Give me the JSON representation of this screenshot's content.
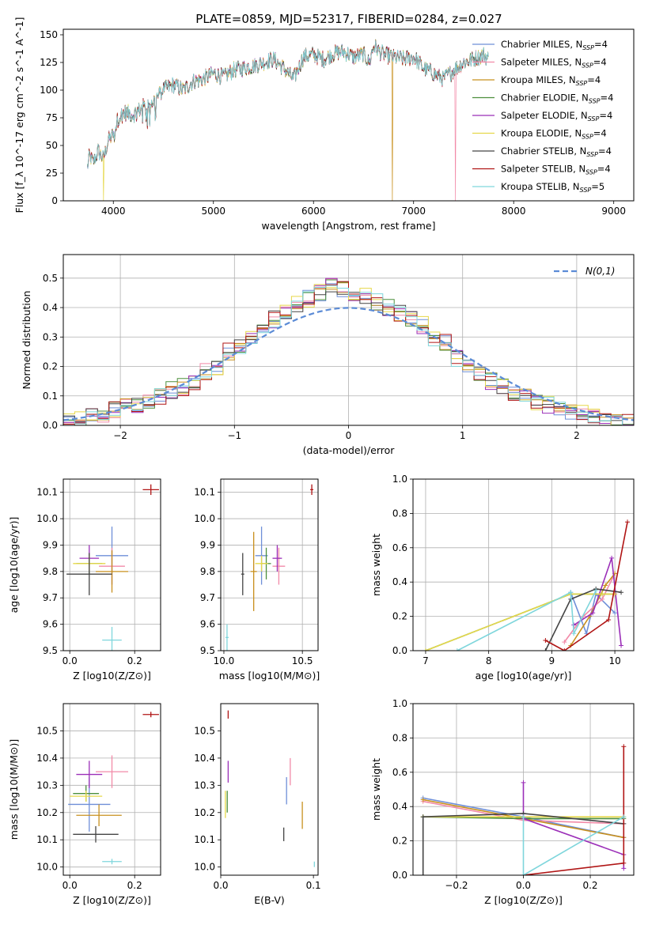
{
  "title": "PLATE=0859, MJD=52317, FIBERID=0284, z=0.027",
  "series_colors": [
    "#6e8fd8",
    "#f28aa8",
    "#c8901e",
    "#4c8f3c",
    "#9b2fb8",
    "#e6d84a",
    "#444444",
    "#b01515",
    "#7fd6dc"
  ],
  "chart_data": [
    {
      "id": "spectrum",
      "type": "line",
      "title": "PLATE=0859, MJD=52317, FIBERID=0284, z=0.027",
      "xlabel": "wavelength [Angstrom, rest frame]",
      "ylabel": "Flux [f_λ 10^-17 erg cm^-2 s^-1 A^-1]",
      "xlim": [
        3500,
        9200
      ],
      "ylim": [
        0,
        155
      ],
      "xticks": [
        4000,
        5000,
        6000,
        7000,
        8000,
        9000
      ],
      "yticks": [
        0,
        25,
        50,
        75,
        100,
        125,
        150
      ],
      "grid": false,
      "legend_position": "top-right",
      "spectrum_envelope": {
        "x": [
          3740,
          3760,
          3800,
          3850,
          3900,
          3950,
          4000,
          4050,
          4100,
          4200,
          4300,
          4400,
          4500,
          4600,
          4700,
          4800,
          4900,
          5000,
          5100,
          5200,
          5300,
          5400,
          5500,
          5600,
          5700,
          5800,
          5900,
          6000,
          6100,
          6200,
          6300,
          6400,
          6500,
          6560,
          6600,
          6700,
          6800,
          6900,
          7000,
          7100,
          7200,
          7300,
          7400,
          7500,
          7600,
          7700,
          7750
        ],
        "y": [
          30,
          40,
          35,
          45,
          38,
          55,
          60,
          75,
          80,
          78,
          85,
          90,
          100,
          105,
          100,
          108,
          110,
          115,
          112,
          118,
          120,
          122,
          125,
          128,
          120,
          110,
          130,
          132,
          128,
          133,
          135,
          130,
          132,
          125,
          140,
          132,
          130,
          128,
          130,
          120,
          115,
          110,
          118,
          125,
          128,
          132,
          128
        ]
      },
      "series": [
        {
          "name": "Chabrier MILES, N_SSP=4"
        },
        {
          "name": "Salpeter MILES, N_SSP=4",
          "drop_to_zero_at": 7420
        },
        {
          "name": "Kroupa MILES, N_SSP=4",
          "drop_to_zero_at": 6790
        },
        {
          "name": "Chabrier ELODIE, N_SSP=4"
        },
        {
          "name": "Salpeter ELODIE, N_SSP=4"
        },
        {
          "name": "Kroupa ELODIE, N_SSP=4",
          "drop_to_zero_at": 3900
        },
        {
          "name": "Chabrier STELIB, N_SSP=4"
        },
        {
          "name": "Salpeter STELIB, N_SSP=4"
        },
        {
          "name": "Kroupa STELIB, N_SSP=5"
        }
      ]
    },
    {
      "id": "residuals",
      "type": "step",
      "xlabel": "(data-model)/error",
      "ylabel": "Normed distribution",
      "xlim": [
        -2.5,
        2.5
      ],
      "ylim": [
        0,
        0.58
      ],
      "xticks": [
        -2,
        -1,
        0,
        1,
        2
      ],
      "yticks": [
        0.0,
        0.1,
        0.2,
        0.3,
        0.4,
        0.5
      ],
      "grid": true,
      "legend_position": "top-right",
      "reference_curve": {
        "name": "N(0,1)",
        "mean": 0,
        "sigma": 1
      },
      "bin_centers": [
        -2.45,
        -2.35,
        -2.25,
        -2.15,
        -2.05,
        -1.95,
        -1.85,
        -1.75,
        -1.65,
        -1.55,
        -1.45,
        -1.35,
        -1.25,
        -1.15,
        -1.05,
        -0.95,
        -0.85,
        -0.75,
        -0.65,
        -0.55,
        -0.45,
        -0.35,
        -0.25,
        -0.15,
        -0.05,
        0.05,
        0.15,
        0.25,
        0.35,
        0.45,
        0.55,
        0.65,
        0.75,
        0.85,
        0.95,
        1.05,
        1.15,
        1.25,
        1.35,
        1.45,
        1.55,
        1.65,
        1.75,
        1.85,
        1.95,
        2.05,
        2.15,
        2.25,
        2.35,
        2.45
      ],
      "base_values": [
        0.015,
        0.025,
        0.035,
        0.04,
        0.055,
        0.07,
        0.07,
        0.085,
        0.1,
        0.12,
        0.13,
        0.15,
        0.18,
        0.2,
        0.25,
        0.27,
        0.3,
        0.34,
        0.36,
        0.38,
        0.41,
        0.43,
        0.45,
        0.47,
        0.46,
        0.45,
        0.44,
        0.42,
        0.4,
        0.38,
        0.36,
        0.34,
        0.3,
        0.28,
        0.23,
        0.2,
        0.17,
        0.15,
        0.13,
        0.11,
        0.1,
        0.08,
        0.07,
        0.06,
        0.05,
        0.04,
        0.03,
        0.02,
        0.015,
        0.01
      ]
    },
    {
      "id": "age-vs-z",
      "type": "scatter",
      "xlabel": "Z [log10(Z/Z⊙)]",
      "ylabel": "age [log10(age/yr)]",
      "xlim": [
        -0.02,
        0.28
      ],
      "ylim": [
        9.5,
        10.15
      ],
      "xticks": [
        0.0,
        0.2
      ],
      "yticks": [
        9.5,
        9.6,
        9.7,
        9.8,
        9.9,
        10.0,
        10.1
      ],
      "grid": true,
      "points": [
        {
          "x": 0.13,
          "y": 9.86,
          "xerr": 0.05,
          "yerr": 0.11
        },
        {
          "x": 0.13,
          "y": 9.82,
          "xerr": 0.04,
          "yerr": 0.07
        },
        {
          "x": 0.13,
          "y": 9.8,
          "xerr": 0.05,
          "yerr": 0.08
        },
        {
          "x": 0.06,
          "y": 9.83,
          "xerr": 0.04,
          "yerr": 0.04
        },
        {
          "x": 0.06,
          "y": 9.85,
          "xerr": 0.03,
          "yerr": 0.05
        },
        {
          "x": 0.06,
          "y": 9.83,
          "xerr": 0.05,
          "yerr": 0.03
        },
        {
          "x": 0.06,
          "y": 9.79,
          "xerr": 0.07,
          "yerr": 0.08
        },
        {
          "x": 0.25,
          "y": 10.11,
          "xerr": 0.025,
          "yerr": 0.02
        },
        {
          "x": 0.13,
          "y": 9.54,
          "xerr": 0.03,
          "yerr": 0.05
        }
      ]
    },
    {
      "id": "age-vs-mass",
      "type": "scatter",
      "xlabel": "mass [log10(M/M⊙)]",
      "ylabel": "",
      "xlim": [
        9.98,
        10.6
      ],
      "ylim": [
        9.5,
        10.15
      ],
      "xticks": [
        10.0,
        10.5
      ],
      "yticks": [
        9.5,
        9.6,
        9.7,
        9.8,
        9.9,
        10.0,
        10.1
      ],
      "grid": true,
      "points": [
        {
          "x": 10.24,
          "y": 9.86,
          "xerr": 0.04,
          "yerr": 0.11
        },
        {
          "x": 10.35,
          "y": 9.82,
          "xerr": 0.04,
          "yerr": 0.07
        },
        {
          "x": 10.19,
          "y": 9.8,
          "xerr": 0.02,
          "yerr": 0.15
        },
        {
          "x": 10.27,
          "y": 9.83,
          "xerr": 0.03,
          "yerr": 0.06
        },
        {
          "x": 10.34,
          "y": 9.85,
          "xerr": 0.03,
          "yerr": 0.05
        },
        {
          "x": 10.24,
          "y": 9.83,
          "xerr": 0.04,
          "yerr": 0.03
        },
        {
          "x": 10.12,
          "y": 9.79,
          "xerr": 0.01,
          "yerr": 0.08
        },
        {
          "x": 10.56,
          "y": 10.11,
          "xerr": 0.01,
          "yerr": 0.02
        },
        {
          "x": 10.02,
          "y": 9.55,
          "xerr": 0.01,
          "yerr": 0.05
        }
      ]
    },
    {
      "id": "weight-vs-age",
      "type": "line",
      "xlabel": "age [log10(age/yr)]",
      "ylabel": "mass weight",
      "xlim": [
        6.8,
        10.3
      ],
      "ylim": [
        0,
        1.0
      ],
      "xticks": [
        7,
        8,
        9,
        10
      ],
      "yticks": [
        0.0,
        0.2,
        0.4,
        0.6,
        0.8,
        1.0
      ],
      "grid": true,
      "series": [
        {
          "x": [
            9.3,
            9.55,
            9.7,
            10.0
          ],
          "y": [
            0.34,
            0.1,
            0.33,
            0.22
          ]
        },
        {
          "x": [
            9.2,
            9.5,
            9.8,
            10.0
          ],
          "y": [
            0.05,
            0.2,
            0.3,
            0.45
          ]
        },
        {
          "x": [
            9.3,
            9.6,
            9.85,
            10.0
          ],
          "y": [
            0.03,
            0.2,
            0.38,
            0.45
          ]
        },
        {
          "x": [
            7.0,
            9.3,
            9.8,
            10.0
          ],
          "y": [
            0.0,
            0.33,
            0.33,
            0.33
          ]
        },
        {
          "x": [
            9.35,
            9.65,
            9.95,
            10.1
          ],
          "y": [
            0.15,
            0.22,
            0.54,
            0.03
          ]
        },
        {
          "x": [
            7.0,
            9.3,
            9.8,
            10.0
          ],
          "y": [
            0.0,
            0.33,
            0.33,
            0.33
          ]
        },
        {
          "x": [
            8.9,
            9.3,
            9.7,
            10.1
          ],
          "y": [
            0.0,
            0.3,
            0.36,
            0.34
          ]
        },
        {
          "x": [
            8.9,
            9.2,
            9.9,
            10.2
          ],
          "y": [
            0.06,
            0.0,
            0.18,
            0.75
          ]
        },
        {
          "x": [
            7.5,
            9.3,
            9.35,
            9.7
          ],
          "y": [
            0.0,
            0.34,
            0.1,
            0.35
          ]
        }
      ]
    },
    {
      "id": "mass-vs-z",
      "type": "scatter",
      "xlabel": "Z [log10(Z/Z⊙)]",
      "ylabel": "mass [log10(M/M⊙)]",
      "xlim": [
        -0.02,
        0.28
      ],
      "ylim": [
        9.97,
        10.6
      ],
      "xticks": [
        0.0,
        0.2
      ],
      "yticks": [
        10.0,
        10.1,
        10.2,
        10.3,
        10.4,
        10.5
      ],
      "grid": true,
      "points": [
        {
          "x": 0.06,
          "y": 10.23,
          "xerr": 0.065,
          "yerr": 0.1
        },
        {
          "x": 0.13,
          "y": 10.35,
          "xerr": 0.05,
          "yerr": 0.06
        },
        {
          "x": 0.09,
          "y": 10.19,
          "xerr": 0.07,
          "yerr": 0.04
        },
        {
          "x": 0.05,
          "y": 10.27,
          "xerr": 0.04,
          "yerr": 0.03
        },
        {
          "x": 0.06,
          "y": 10.34,
          "xerr": 0.04,
          "yerr": 0.05
        },
        {
          "x": 0.05,
          "y": 10.26,
          "xerr": 0.05,
          "yerr": 0.02
        },
        {
          "x": 0.08,
          "y": 10.12,
          "xerr": 0.07,
          "yerr": 0.03
        },
        {
          "x": 0.25,
          "y": 10.56,
          "xerr": 0.025,
          "yerr": 0.01
        },
        {
          "x": 0.13,
          "y": 10.02,
          "xerr": 0.03,
          "yerr": 0.01
        }
      ]
    },
    {
      "id": "mass-vs-ebv",
      "type": "scatter",
      "xlabel": "E(B-V)",
      "ylabel": "",
      "xlim": [
        0.0,
        0.105
      ],
      "ylim": [
        9.97,
        10.6
      ],
      "xticks": [
        0.0,
        0.1
      ],
      "yticks": [
        10.0,
        10.1,
        10.2,
        10.3,
        10.4,
        10.5
      ],
      "grid": false,
      "points": [
        {
          "x": 0.071,
          "y": 10.28,
          "xerr": 0.0,
          "yerr": 0.05
        },
        {
          "x": 0.075,
          "y": 10.35,
          "xerr": 0.0,
          "yerr": 0.05
        },
        {
          "x": 0.088,
          "y": 10.19,
          "xerr": 0.0,
          "yerr": 0.05
        },
        {
          "x": 0.007,
          "y": 10.24,
          "xerr": 0.0,
          "yerr": 0.04
        },
        {
          "x": 0.008,
          "y": 10.35,
          "xerr": 0.0,
          "yerr": 0.04
        },
        {
          "x": 0.005,
          "y": 10.23,
          "xerr": 0.0,
          "yerr": 0.05
        },
        {
          "x": 0.068,
          "y": 10.12,
          "xerr": 0.0,
          "yerr": 0.025
        },
        {
          "x": 0.008,
          "y": 10.56,
          "xerr": 0.0,
          "yerr": 0.015
        },
        {
          "x": 0.101,
          "y": 10.01,
          "xerr": 0.0,
          "yerr": 0.01
        }
      ]
    },
    {
      "id": "weight-vs-z",
      "type": "line",
      "xlabel": "Z [log10(Z/Z⊙)]",
      "ylabel": "mass weight",
      "xlim": [
        -0.33,
        0.33
      ],
      "ylim": [
        0,
        1.0
      ],
      "xticks": [
        -0.2,
        0.0,
        0.2
      ],
      "yticks": [
        0.0,
        0.2,
        0.4,
        0.6,
        0.8,
        1.0
      ],
      "grid": true,
      "series": [
        {
          "x": [
            -0.3,
            0.0,
            0.3
          ],
          "y": [
            0.45,
            0.34,
            0.22
          ]
        },
        {
          "x": [
            -0.3,
            0.0,
            0.3
          ],
          "y": [
            0.43,
            0.32,
            0.3
          ]
        },
        {
          "x": [
            -0.3,
            0.0,
            0.3
          ],
          "y": [
            0.44,
            0.33,
            0.22
          ]
        },
        {
          "x": [
            -0.3,
            0.0,
            0.3
          ],
          "y": [
            0.34,
            0.33,
            0.33
          ]
        },
        {
          "x": [
            0.0,
            0.0,
            0.3,
            0.3
          ],
          "y": [
            0.54,
            0.33,
            0.12,
            0.04
          ]
        },
        {
          "x": [
            -0.3,
            0.0,
            0.3
          ],
          "y": [
            0.34,
            0.34,
            0.34
          ]
        },
        {
          "x": [
            -0.3,
            -0.3,
            0.0,
            0.3
          ],
          "y": [
            0.0,
            0.34,
            0.36,
            0.3
          ]
        },
        {
          "x": [
            0.0,
            0.3,
            0.3
          ],
          "y": [
            0.0,
            0.07,
            0.75
          ]
        },
        {
          "x": [
            0.0,
            0.0,
            0.3
          ],
          "y": [
            0.34,
            0.0,
            0.34
          ]
        }
      ]
    }
  ]
}
